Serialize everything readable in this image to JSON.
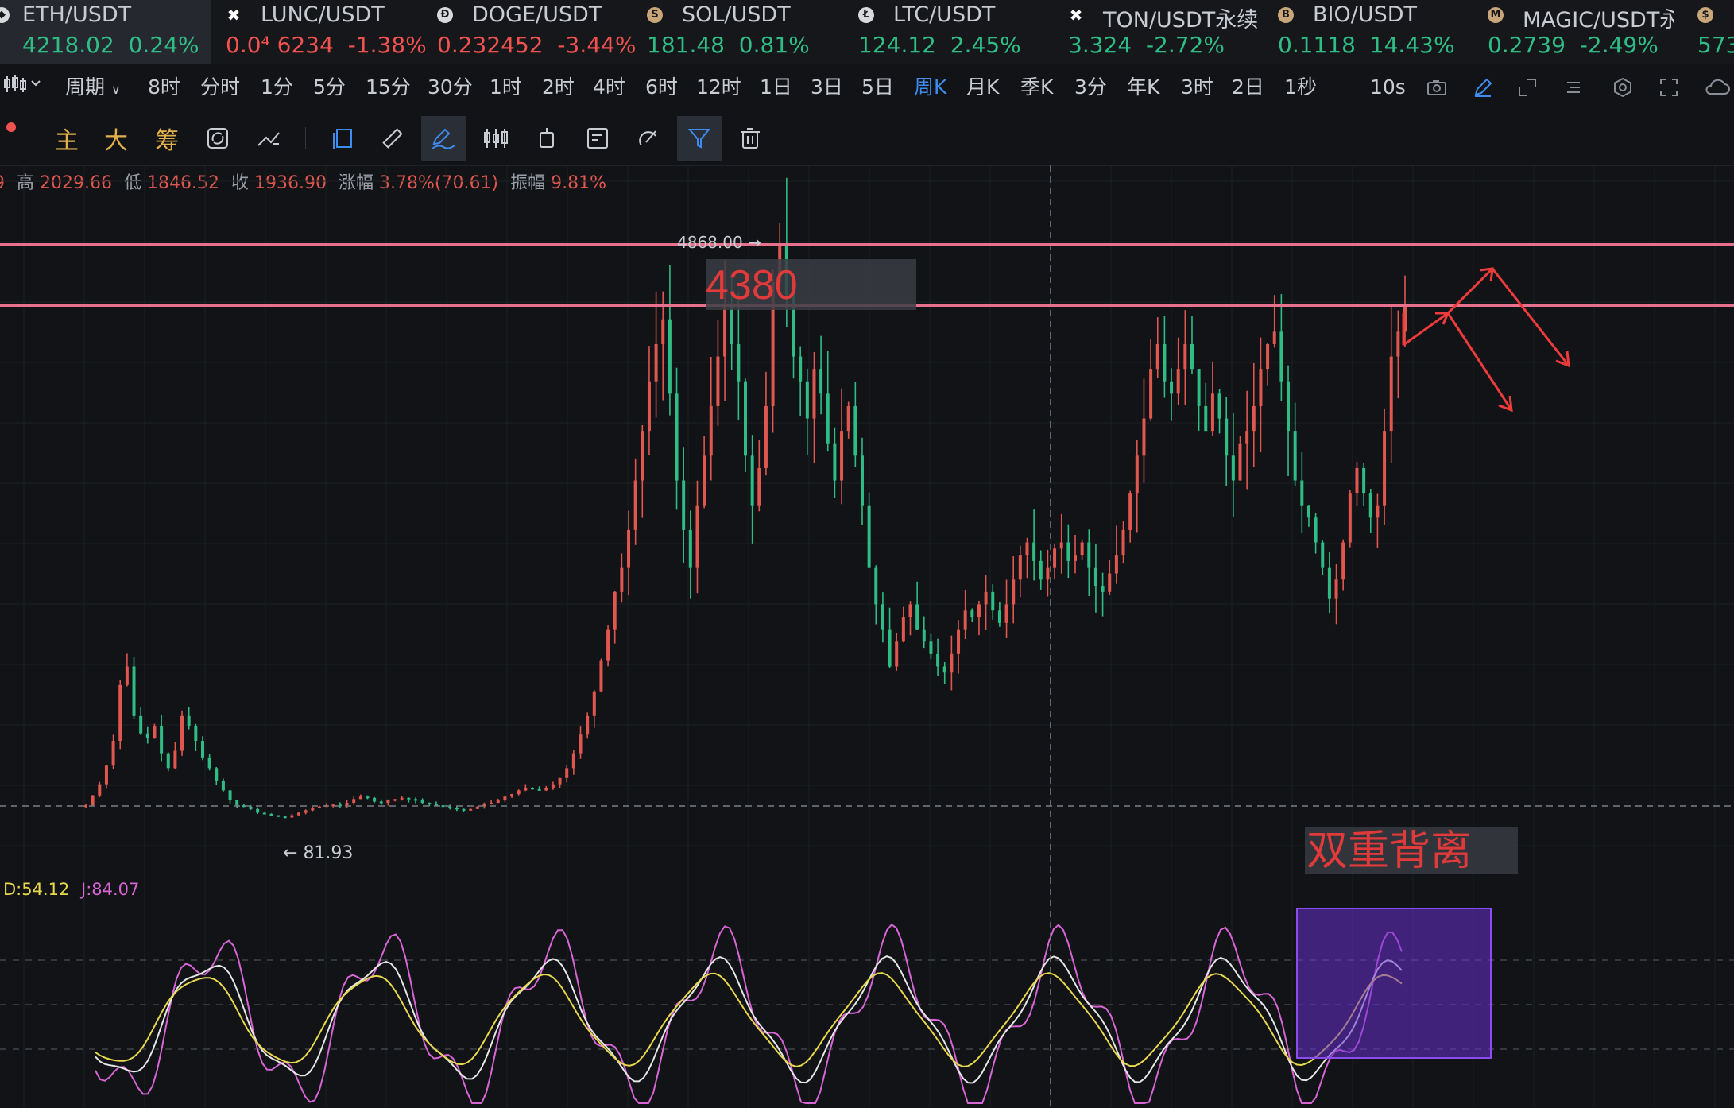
{
  "tickers": [
    {
      "symbol": "ETH/USDT",
      "price": "4218.02",
      "change": "0.24%",
      "direction": "up",
      "icon": "eth-coin-icon",
      "active": true
    },
    {
      "symbol": "LUNC/USDT",
      "price": "0.0⁴ 6234",
      "change": "-1.38%",
      "direction": "down",
      "icon": "lunc-coin-icon",
      "active": false
    },
    {
      "symbol": "DOGE/USDT",
      "price": "0.232452",
      "change": "-3.44%",
      "direction": "down",
      "icon": "doge-coin-icon",
      "active": false
    },
    {
      "symbol": "SOL/USDT",
      "price": "181.48",
      "change": "0.81%",
      "direction": "up",
      "icon": "sol-coin-icon",
      "active": false
    },
    {
      "symbol": "LTC/USDT",
      "price": "124.12",
      "change": "2.45%",
      "direction": "up",
      "icon": "ltc-coin-icon",
      "active": false
    },
    {
      "symbol": "TON/USDT永续",
      "price": "3.324",
      "change": "-2.72%",
      "direction": "up",
      "icon": "ton-coin-icon",
      "active": false
    },
    {
      "symbol": "BIO/USDT",
      "price": "0.1118",
      "change": "14.43%",
      "direction": "up",
      "icon": "bio-coin-icon",
      "active": false
    },
    {
      "symbol": "MAGIC/USDT永续",
      "price": "0.2739",
      "change": "-2.49%",
      "direction": "up",
      "icon": "magic-coin-icon",
      "active": false
    },
    {
      "symbol": "",
      "price": "573",
      "change": "",
      "direction": "up",
      "icon": "coin-icon",
      "active": false
    }
  ],
  "periods": {
    "label": "周期",
    "items": [
      "8时",
      "分时",
      "1分",
      "5分",
      "15分",
      "30分",
      "1时",
      "2时",
      "4时",
      "6时",
      "12时",
      "1日",
      "3日",
      "5日",
      "周K",
      "月K",
      "季K",
      "3分",
      "年K",
      "3时",
      "2日",
      "1秒",
      "10s"
    ],
    "active": "周K"
  },
  "draw_tools": {
    "main": "主",
    "big": "大",
    "chips": "筹"
  },
  "ohlc": {
    "high_label": "高",
    "high": "2029.66",
    "low_label": "低",
    "low": "1846.52",
    "close_label": "收",
    "close": "1936.90",
    "change_label": "涨幅",
    "change": "3.78%(70.61)",
    "amp_label": "振幅",
    "amp": "9.81%"
  },
  "annotations": {
    "price_high": "4868.00",
    "price_low": "81.93",
    "box_label": "4380",
    "divergence_label": "双重背离",
    "colors": {
      "levels": "#e9718e",
      "arrows": "#ee3b3b",
      "box": "#7b3fe4"
    }
  },
  "indicator": {
    "d_label": "D:54.12",
    "j_label": "J:84.07"
  },
  "chart_data": {
    "type": "candlestick",
    "title": "",
    "xlabel": "",
    "ylabel": "",
    "ylim": [
      -300,
      5150
    ],
    "scale": "linear",
    "grid": true,
    "up_color": "#e0574f",
    "down_color": "#2fbd85",
    "levels": [
      4868,
      4380
    ],
    "annotated_extremes": {
      "high": 4868.0,
      "low": 81.93
    },
    "close_series": [
      180,
      260,
      350,
      500,
      700,
      1150,
      1300,
      900,
      760,
      720,
      820,
      600,
      480,
      620,
      900,
      820,
      700,
      560,
      480,
      380,
      300,
      220,
      180,
      170,
      150,
      120,
      110,
      100,
      90,
      82,
      100,
      120,
      140,
      160,
      170,
      180,
      185,
      180,
      200,
      230,
      250,
      240,
      210,
      200,
      220,
      230,
      240,
      230,
      220,
      200,
      190,
      180,
      170,
      160,
      150,
      140,
      150,
      170,
      190,
      200,
      220,
      250,
      270,
      300,
      320,
      310,
      300,
      320,
      350,
      400,
      480,
      600,
      750,
      900,
      1100,
      1350,
      1600,
      1900,
      2100,
      2400,
      2800,
      3200,
      3600,
      3900,
      4100,
      3500,
      2800,
      2400,
      2100,
      2600,
      3000,
      3400,
      3800,
      4200,
      3900,
      3600,
      3000,
      2600,
      2900,
      3400,
      4400,
      4700,
      4300,
      3800,
      3600,
      3300,
      3700,
      3500,
      3100,
      2800,
      3200,
      3400,
      3000,
      2600,
      2100,
      1800,
      1600,
      1300,
      1500,
      1700,
      1800,
      1600,
      1500,
      1400,
      1300,
      1250,
      1400,
      1600,
      1750,
      1700,
      1800,
      1900,
      1750,
      1650,
      1800,
      2000,
      2200,
      2300,
      2150,
      2000,
      2100,
      2250,
      2300,
      2150,
      2200,
      2300,
      2100,
      1950,
      1900,
      2050,
      2200,
      2400,
      2700,
      3000,
      3300,
      3700,
      3900,
      3600,
      3500,
      3700,
      3900,
      3700,
      3400,
      3200,
      3500,
      3300,
      3000,
      2800,
      3100,
      3200,
      3400,
      3700,
      3900,
      4000,
      3600,
      3200,
      2800,
      2600,
      2500,
      2300,
      2100,
      1850,
      2000,
      2300,
      2700,
      2900,
      2700,
      2500,
      2600,
      3200,
      3800,
      4000,
      4218
    ]
  }
}
